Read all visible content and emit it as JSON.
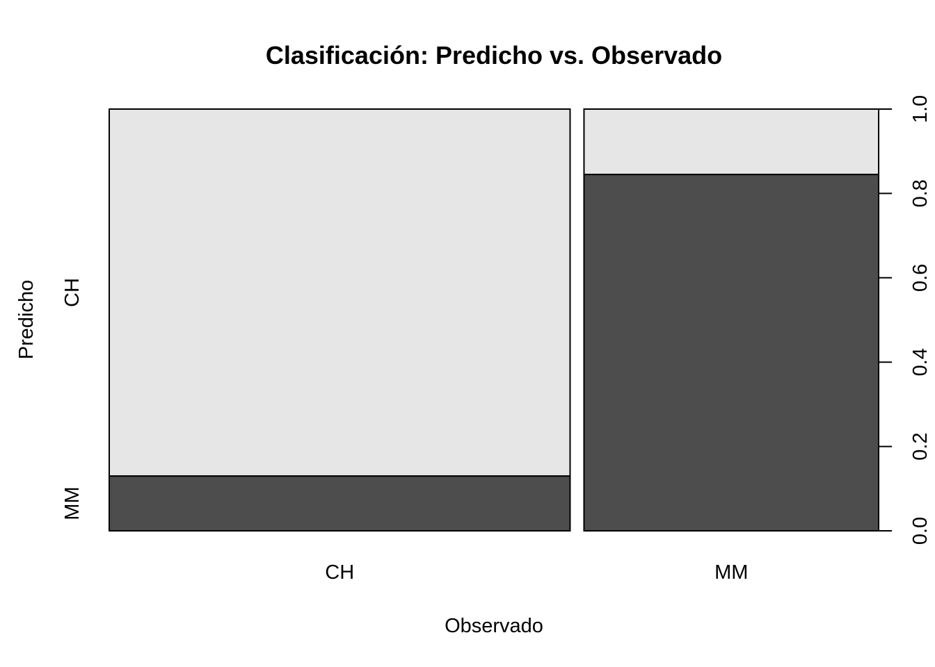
{
  "chart_data": {
    "type": "spineplot",
    "title": "Clasificación: Predicho vs. Observado",
    "xlabel": "Observado",
    "ylabel": "Predicho",
    "x_categories": [
      "CH",
      "MM"
    ],
    "x_proportions": [
      0.61,
      0.39
    ],
    "y_categories": [
      "MM",
      "CH"
    ],
    "y_tick_labels": [
      "0.0",
      "0.2",
      "0.4",
      "0.6",
      "0.8",
      "1.0"
    ],
    "ylim": [
      0,
      1
    ],
    "colors": {
      "MM": "#4d4d4d",
      "CH": "#e6e6e6"
    },
    "cells": [
      {
        "observed": "CH",
        "MM": 0.13,
        "CH": 0.87
      },
      {
        "observed": "MM",
        "MM": 0.845,
        "CH": 0.155
      }
    ]
  }
}
